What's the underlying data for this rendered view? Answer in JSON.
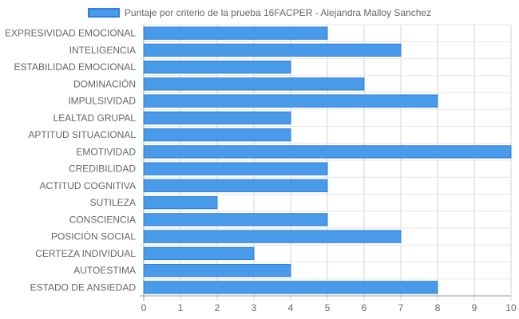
{
  "chart_data": {
    "type": "bar",
    "orientation": "horizontal",
    "categories": [
      "EXPRESIVIDAD EMOCIONAL",
      "INTELIGENCIA",
      "ESTABILIDAD EMOCIONAL",
      "DOMINACIÓN",
      "IMPULSIVIDAD",
      "LEALTAD GRUPAL",
      "APTITUD SITUACIONAL",
      "EMOTIVIDAD",
      "CREDIBILIDAD",
      "ACTITUD COGNITIVA",
      "SUTILEZA",
      "CONSCIENCIA",
      "POSICIÓN SOCIAL",
      "CERTEZA INDIVIDUAL",
      "AUTOESTIMA",
      "ESTADO DE ANSIEDAD"
    ],
    "series": [
      {
        "name": "Puntaje por criterio de la prueba 16FACPER - Alejandra Malloy Sanchez",
        "values": [
          5,
          7,
          4,
          6,
          8,
          4,
          4,
          10,
          5,
          5,
          2,
          5,
          7,
          3,
          4,
          8
        ],
        "color": "#4a9aea",
        "border_color": "#2f80d8"
      }
    ],
    "xlim": [
      0,
      10
    ],
    "x_ticks": [
      "0",
      "1",
      "2",
      "3",
      "4",
      "5",
      "6",
      "7",
      "8",
      "9",
      "10"
    ],
    "grid": true,
    "legend_position": "top"
  }
}
